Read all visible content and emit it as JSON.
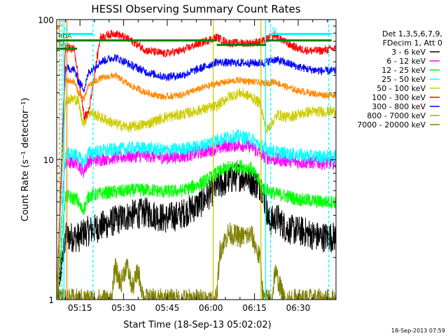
{
  "chart_data": {
    "type": "line",
    "title": "HESSI Observing Summary Count Rates",
    "xlabel": "Start Time (18-Sep-13 05:02:02)",
    "ylabel": "Count Rate (s⁻¹ detector⁻¹)",
    "y_scale": "log",
    "ylim": [
      1,
      100
    ],
    "xlim_minutes": [
      5.0,
      101.0
    ],
    "x_ticks": [
      {
        "t": 13,
        "label": "05:15"
      },
      {
        "t": 28,
        "label": "05:30"
      },
      {
        "t": 43,
        "label": "05:45"
      },
      {
        "t": 58,
        "label": "06:00"
      },
      {
        "t": 73,
        "label": "06:15"
      },
      {
        "t": 88,
        "label": "06:30"
      }
    ],
    "y_tick_labels": [
      "1",
      "10",
      "100"
    ],
    "grid": false,
    "legend_position": "right",
    "legend_header": [
      "Det 1,3,5,6,7,9,",
      "FDecim 1, Att 0"
    ],
    "series": [
      {
        "name": "3 - 6 keV",
        "color": "#000000",
        "points": [
          [
            5,
            1
          ],
          [
            8,
            2.8
          ],
          [
            12,
            2.8
          ],
          [
            13.3,
            2.8
          ],
          [
            14,
            3.0
          ],
          [
            18,
            3.2
          ],
          [
            24,
            3.6
          ],
          [
            30,
            4.0
          ],
          [
            36,
            4.2
          ],
          [
            42,
            3.8
          ],
          [
            47,
            4.0
          ],
          [
            50,
            4.3
          ],
          [
            54,
            4.8
          ],
          [
            58,
            5.8
          ],
          [
            60,
            6.4
          ],
          [
            63,
            7.0
          ],
          [
            67,
            7.6
          ],
          [
            70,
            7.6
          ],
          [
            73,
            6.8
          ],
          [
            75.5,
            6.4
          ],
          [
            78,
            3.6
          ],
          [
            81,
            3.8
          ],
          [
            84,
            3.2
          ],
          [
            88,
            3.1
          ],
          [
            91,
            3.0
          ],
          [
            95,
            2.8
          ],
          [
            100,
            2.8
          ]
        ]
      },
      {
        "name": "6 - 12 keV",
        "color": "#ff00ff",
        "points": [
          [
            5,
            1
          ],
          [
            7.8,
            9.4
          ],
          [
            12,
            9.6
          ],
          [
            13.5,
            8.6
          ],
          [
            14.2,
            8.2
          ],
          [
            16,
            9.8
          ],
          [
            22,
            10.2
          ],
          [
            30,
            10.6
          ],
          [
            36,
            10.7
          ],
          [
            42,
            10.3
          ],
          [
            48,
            10.6
          ],
          [
            52,
            11.0
          ],
          [
            56,
            11.5
          ],
          [
            60,
            12.0
          ],
          [
            64,
            12.6
          ],
          [
            68,
            12.8
          ],
          [
            72,
            12.4
          ],
          [
            76,
            10.6
          ],
          [
            80,
            10.0
          ],
          [
            84,
            9.9
          ],
          [
            88,
            9.6
          ],
          [
            92,
            9.6
          ],
          [
            96,
            9.5
          ],
          [
            100,
            9.5
          ]
        ]
      },
      {
        "name": "12 - 25 keV",
        "color": "#00ff00",
        "points": [
          [
            5,
            1
          ],
          [
            8,
            5.5
          ],
          [
            12,
            5.2
          ],
          [
            13.5,
            4.4
          ],
          [
            14.5,
            4.5
          ],
          [
            16,
            5.5
          ],
          [
            22,
            5.8
          ],
          [
            30,
            6.0
          ],
          [
            36,
            6.1
          ],
          [
            42,
            5.9
          ],
          [
            48,
            6.0
          ],
          [
            52,
            6.4
          ],
          [
            56,
            7.0
          ],
          [
            60,
            8.0
          ],
          [
            64,
            8.8
          ],
          [
            68,
            9.0
          ],
          [
            72,
            8.6
          ],
          [
            76,
            6.2
          ],
          [
            80,
            5.7
          ],
          [
            84,
            5.5
          ],
          [
            88,
            5.2
          ],
          [
            92,
            5.1
          ],
          [
            96,
            5.0
          ],
          [
            100,
            5.0
          ]
        ]
      },
      {
        "name": "25 - 50 keV",
        "color": "#00ffff",
        "points": [
          [
            5,
            1
          ],
          [
            8,
            11.0
          ],
          [
            12,
            10.8
          ],
          [
            13.5,
            9.8
          ],
          [
            14.5,
            9.6
          ],
          [
            16,
            11.2
          ],
          [
            22,
            11.6
          ],
          [
            30,
            12.0
          ],
          [
            36,
            12.1
          ],
          [
            42,
            11.6
          ],
          [
            48,
            11.9
          ],
          [
            52,
            12.2
          ],
          [
            56,
            12.8
          ],
          [
            60,
            13.8
          ],
          [
            64,
            14.5
          ],
          [
            68,
            14.6
          ],
          [
            72,
            14.0
          ],
          [
            76,
            12.2
          ],
          [
            80,
            11.4
          ],
          [
            84,
            11.0
          ],
          [
            88,
            10.8
          ],
          [
            92,
            10.6
          ],
          [
            96,
            10.5
          ],
          [
            100,
            10.5
          ]
        ]
      },
      {
        "name": "50 - 100 keV",
        "color": "#cccc00",
        "points": [
          [
            5,
            1
          ],
          [
            8,
            27
          ],
          [
            11,
            27
          ],
          [
            12.5,
            26
          ],
          [
            13.5,
            20
          ],
          [
            14.5,
            18
          ],
          [
            16,
            22
          ],
          [
            20,
            20
          ],
          [
            25,
            18
          ],
          [
            30,
            17
          ],
          [
            36,
            18
          ],
          [
            42,
            20
          ],
          [
            48,
            21
          ],
          [
            52,
            22
          ],
          [
            56,
            23
          ],
          [
            60,
            24
          ],
          [
            64,
            28
          ],
          [
            68,
            30
          ],
          [
            72,
            28
          ],
          [
            75,
            25
          ],
          [
            77,
            16
          ],
          [
            81,
            21
          ],
          [
            84,
            20
          ],
          [
            88,
            21
          ],
          [
            92,
            22
          ],
          [
            96,
            22
          ],
          [
            100,
            22
          ]
        ]
      },
      {
        "name": "100 - 300 keV",
        "color": "#ff0000",
        "points": [
          [
            5,
            1
          ],
          [
            8,
            62
          ],
          [
            11,
            62
          ],
          [
            12.5,
            38
          ],
          [
            14.5,
            20
          ],
          [
            16,
            22
          ],
          [
            20,
            75
          ],
          [
            25,
            80
          ],
          [
            30,
            72
          ],
          [
            36,
            60
          ],
          [
            42,
            57
          ],
          [
            48,
            60
          ],
          [
            52,
            65
          ],
          [
            56,
            70
          ],
          [
            60,
            75
          ],
          [
            64,
            68
          ],
          [
            68,
            68
          ],
          [
            72,
            68
          ],
          [
            76,
            70
          ],
          [
            80,
            78
          ],
          [
            84,
            68
          ],
          [
            88,
            62
          ],
          [
            92,
            60
          ],
          [
            96,
            60
          ],
          [
            100,
            62
          ]
        ]
      },
      {
        "name": "300 - 800 keV",
        "color": "#0000ff",
        "points": [
          [
            5,
            1
          ],
          [
            8,
            45
          ],
          [
            11,
            44
          ],
          [
            12.5,
            36
          ],
          [
            14.5,
            32
          ],
          [
            16,
            42
          ],
          [
            20,
            50
          ],
          [
            25,
            54
          ],
          [
            30,
            48
          ],
          [
            36,
            42
          ],
          [
            42,
            39
          ],
          [
            48,
            40
          ],
          [
            52,
            43
          ],
          [
            56,
            46
          ],
          [
            60,
            50
          ],
          [
            64,
            49
          ],
          [
            68,
            49
          ],
          [
            72,
            49
          ],
          [
            76,
            49
          ],
          [
            80,
            52
          ],
          [
            84,
            49
          ],
          [
            88,
            46
          ],
          [
            92,
            44
          ],
          [
            96,
            43
          ],
          [
            100,
            43
          ]
        ]
      },
      {
        "name": "800 - 7000 keV",
        "color": "#ff8800",
        "points": [
          [
            5,
            1
          ],
          [
            8,
            37
          ],
          [
            11,
            36
          ],
          [
            12.5,
            30
          ],
          [
            14.5,
            27
          ],
          [
            16,
            34
          ],
          [
            20,
            38
          ],
          [
            25,
            40
          ],
          [
            30,
            34
          ],
          [
            36,
            30
          ],
          [
            42,
            28
          ],
          [
            48,
            29
          ],
          [
            52,
            31
          ],
          [
            56,
            33
          ],
          [
            60,
            35
          ],
          [
            64,
            36
          ],
          [
            68,
            37
          ],
          [
            72,
            36
          ],
          [
            76,
            35
          ],
          [
            80,
            36
          ],
          [
            84,
            33
          ],
          [
            88,
            31
          ],
          [
            92,
            30
          ],
          [
            96,
            29
          ],
          [
            100,
            29
          ]
        ]
      },
      {
        "name": "7000 - 20000 keV",
        "color": "#808000",
        "points": [
          [
            5,
            1
          ],
          [
            24,
            1
          ],
          [
            25,
            1.7
          ],
          [
            27,
            1.3
          ],
          [
            29,
            1.8
          ],
          [
            31,
            1.2
          ],
          [
            33,
            1.6
          ],
          [
            35,
            1.0
          ],
          [
            60,
            1.0
          ],
          [
            61,
            2.2
          ],
          [
            64,
            3.0
          ],
          [
            68,
            2.8
          ],
          [
            72,
            2.9
          ],
          [
            75,
            1.9
          ],
          [
            76,
            1.0
          ],
          [
            79,
            1.0
          ],
          [
            80,
            1.6
          ],
          [
            82,
            1.2
          ],
          [
            83,
            1.0
          ],
          [
            100,
            1.0
          ]
        ]
      }
    ],
    "annotations": {
      "vertical_lines": [
        {
          "t": 6.0,
          "color": "#ff8800",
          "style": "dashed"
        },
        {
          "t": 6.8,
          "color": "#00ffff",
          "style": "dashed"
        },
        {
          "t": 7.5,
          "color": "#00ffff",
          "style": "solid"
        },
        {
          "t": 8.5,
          "color": "#ff8800",
          "style": "solid"
        },
        {
          "t": 17.5,
          "color": "#00ffff",
          "style": "dashed"
        },
        {
          "t": 58.8,
          "color": "#cccc00",
          "style": "solid"
        },
        {
          "t": 75.2,
          "color": "#cccc00",
          "style": "solid"
        },
        {
          "t": 76.8,
          "color": "#00ffff",
          "style": "solid"
        },
        {
          "t": 78.5,
          "color": "#00ffff",
          "style": "dashed"
        },
        {
          "t": 98.5,
          "color": "#00ffff",
          "style": "dashed"
        }
      ],
      "status_bars": [
        {
          "label": "S",
          "color": "#ff8800",
          "t0": 5.0,
          "t1": 6.0,
          "level": 87
        },
        {
          "label": "N",
          "color": "#00ffff",
          "t0": 6.8,
          "t1": 17.5,
          "level": 79
        },
        {
          "label": "N",
          "color": "#00ffff",
          "t0": 78.5,
          "t1": 99.5,
          "level": 79
        },
        {
          "label": "RDA",
          "color": "#008000",
          "t0": 5.0,
          "t1": 60.0,
          "level": 71
        },
        {
          "label": "",
          "color": "#008000",
          "t0": 60.0,
          "t1": 77.0,
          "level": 66
        },
        {
          "label": "",
          "color": "#008000",
          "t0": 77.0,
          "t1": 99.5,
          "level": 71
        },
        {
          "label": "Sha",
          "color": "#008000",
          "t0": 5.0,
          "t1": 12.0,
          "level": 62
        }
      ],
      "footer_timestamp": "18-Sep-2013 07:59"
    }
  }
}
